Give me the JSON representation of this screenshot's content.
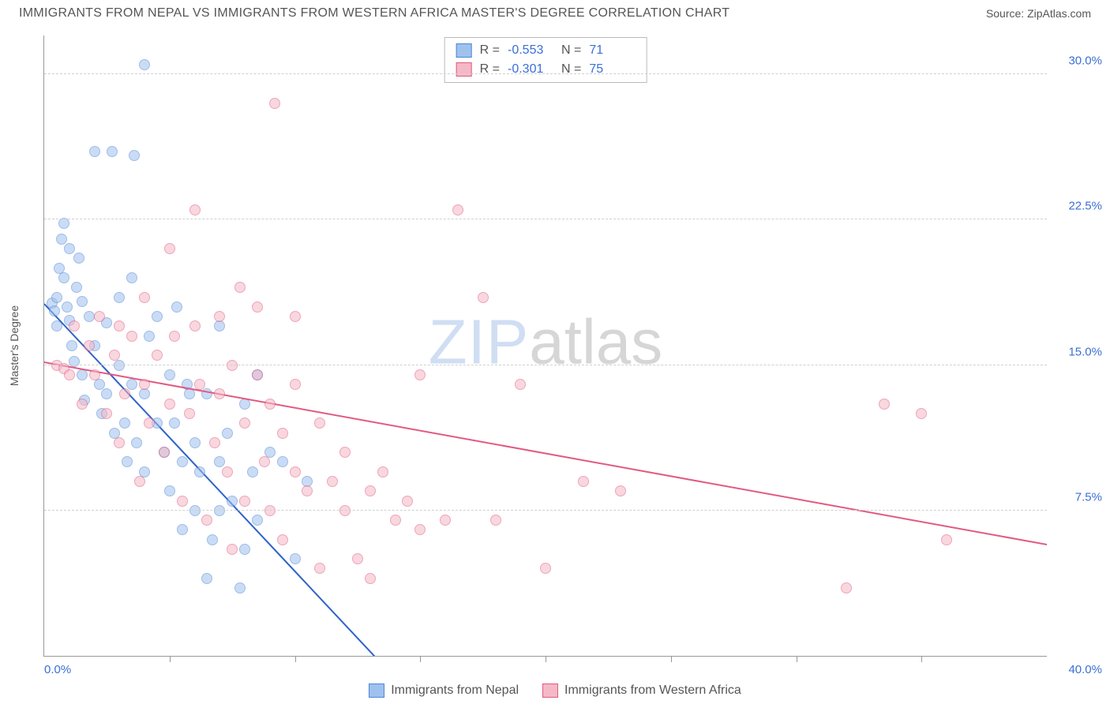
{
  "header": {
    "title": "IMMIGRANTS FROM NEPAL VS IMMIGRANTS FROM WESTERN AFRICA MASTER'S DEGREE CORRELATION CHART",
    "source_prefix": "Source: ",
    "source_link": "ZipAtlas.com"
  },
  "chart": {
    "y_label": "Master's Degree",
    "xlim": [
      0,
      40
    ],
    "ylim": [
      0,
      32
    ],
    "x_min_label": "0.0%",
    "x_max_label": "40.0%",
    "y_ticks": [
      {
        "v": 7.5,
        "label": "7.5%"
      },
      {
        "v": 15.0,
        "label": "15.0%"
      },
      {
        "v": 22.5,
        "label": "22.5%"
      },
      {
        "v": 30.0,
        "label": "30.0%"
      }
    ],
    "x_tick_step": 5,
    "grid_color": "#d0d0d0",
    "background_color": "#ffffff",
    "marker_radius": 7,
    "marker_opacity": 0.55,
    "watermark": {
      "part1": "ZIP",
      "part2": "atlas"
    }
  },
  "series": [
    {
      "name": "Immigrants from Nepal",
      "fill": "#9fc1ee",
      "stroke": "#4e86d6",
      "line_color": "#2e63c9",
      "R": "-0.553",
      "N": "71",
      "trend": {
        "x1": 0,
        "y1": 18.2,
        "x2": 13.2,
        "y2": 0
      },
      "points": [
        [
          0.3,
          18.2
        ],
        [
          0.4,
          17.8
        ],
        [
          0.5,
          17.0
        ],
        [
          0.5,
          18.5
        ],
        [
          0.6,
          20.0
        ],
        [
          0.7,
          21.5
        ],
        [
          0.8,
          22.3
        ],
        [
          0.8,
          19.5
        ],
        [
          0.9,
          18.0
        ],
        [
          1.0,
          21.0
        ],
        [
          1.0,
          17.3
        ],
        [
          1.1,
          16.0
        ],
        [
          1.2,
          15.2
        ],
        [
          1.3,
          19.0
        ],
        [
          1.4,
          20.5
        ],
        [
          1.5,
          18.3
        ],
        [
          1.5,
          14.5
        ],
        [
          1.6,
          13.2
        ],
        [
          1.8,
          17.5
        ],
        [
          2.0,
          16.0
        ],
        [
          2.0,
          26.0
        ],
        [
          2.2,
          14.0
        ],
        [
          2.3,
          12.5
        ],
        [
          2.5,
          17.2
        ],
        [
          2.5,
          13.5
        ],
        [
          2.7,
          26.0
        ],
        [
          2.8,
          11.5
        ],
        [
          3.0,
          15.0
        ],
        [
          3.0,
          18.5
        ],
        [
          3.2,
          12.0
        ],
        [
          3.3,
          10.0
        ],
        [
          3.5,
          14.0
        ],
        [
          3.5,
          19.5
        ],
        [
          3.6,
          25.8
        ],
        [
          3.7,
          11.0
        ],
        [
          4.0,
          30.5
        ],
        [
          4.0,
          13.5
        ],
        [
          4.0,
          9.5
        ],
        [
          4.2,
          16.5
        ],
        [
          4.5,
          12.0
        ],
        [
          4.5,
          17.5
        ],
        [
          4.8,
          10.5
        ],
        [
          5.0,
          14.5
        ],
        [
          5.0,
          8.5
        ],
        [
          5.2,
          12.0
        ],
        [
          5.3,
          18.0
        ],
        [
          5.5,
          6.5
        ],
        [
          5.5,
          10.0
        ],
        [
          5.7,
          14.0
        ],
        [
          5.8,
          13.5
        ],
        [
          6.0,
          11.0
        ],
        [
          6.0,
          7.5
        ],
        [
          6.2,
          9.5
        ],
        [
          6.5,
          13.5
        ],
        [
          6.5,
          4.0
        ],
        [
          6.7,
          6.0
        ],
        [
          7.0,
          17.0
        ],
        [
          7.0,
          10.0
        ],
        [
          7.0,
          7.5
        ],
        [
          7.3,
          11.5
        ],
        [
          7.5,
          8.0
        ],
        [
          7.8,
          3.5
        ],
        [
          8.0,
          13.0
        ],
        [
          8.0,
          5.5
        ],
        [
          8.3,
          9.5
        ],
        [
          8.5,
          14.5
        ],
        [
          8.5,
          7.0
        ],
        [
          9.0,
          10.5
        ],
        [
          9.5,
          10.0
        ],
        [
          10.0,
          5.0
        ],
        [
          10.5,
          9.0
        ]
      ]
    },
    {
      "name": "Immigrants from Western Africa",
      "fill": "#f5b8c6",
      "stroke": "#e15a81",
      "line_color": "#e15a81",
      "R": "-0.301",
      "N": "75",
      "trend": {
        "x1": 0,
        "y1": 15.2,
        "x2": 40,
        "y2": 5.8
      },
      "points": [
        [
          0.5,
          15.0
        ],
        [
          0.8,
          14.8
        ],
        [
          1.0,
          14.5
        ],
        [
          1.2,
          17.0
        ],
        [
          1.5,
          13.0
        ],
        [
          1.8,
          16.0
        ],
        [
          2.0,
          14.5
        ],
        [
          2.2,
          17.5
        ],
        [
          2.5,
          12.5
        ],
        [
          2.8,
          15.5
        ],
        [
          3.0,
          11.0
        ],
        [
          3.0,
          17.0
        ],
        [
          3.2,
          13.5
        ],
        [
          3.5,
          16.5
        ],
        [
          3.8,
          9.0
        ],
        [
          4.0,
          14.0
        ],
        [
          4.0,
          18.5
        ],
        [
          4.2,
          12.0
        ],
        [
          4.5,
          15.5
        ],
        [
          4.8,
          10.5
        ],
        [
          5.0,
          13.0
        ],
        [
          5.0,
          21.0
        ],
        [
          5.2,
          16.5
        ],
        [
          5.5,
          8.0
        ],
        [
          5.8,
          12.5
        ],
        [
          6.0,
          17.0
        ],
        [
          6.0,
          23.0
        ],
        [
          6.2,
          14.0
        ],
        [
          6.5,
          7.0
        ],
        [
          6.8,
          11.0
        ],
        [
          7.0,
          13.5
        ],
        [
          7.0,
          17.5
        ],
        [
          7.3,
          9.5
        ],
        [
          7.5,
          15.0
        ],
        [
          7.5,
          5.5
        ],
        [
          7.8,
          19.0
        ],
        [
          8.0,
          12.0
        ],
        [
          8.0,
          8.0
        ],
        [
          8.5,
          14.5
        ],
        [
          8.5,
          18.0
        ],
        [
          8.8,
          10.0
        ],
        [
          9.0,
          13.0
        ],
        [
          9.0,
          7.5
        ],
        [
          9.2,
          28.5
        ],
        [
          9.5,
          6.0
        ],
        [
          9.5,
          11.5
        ],
        [
          10.0,
          9.5
        ],
        [
          10.0,
          14.0
        ],
        [
          10.0,
          17.5
        ],
        [
          10.5,
          8.5
        ],
        [
          11.0,
          12.0
        ],
        [
          11.0,
          4.5
        ],
        [
          11.5,
          9.0
        ],
        [
          12.0,
          7.5
        ],
        [
          12.0,
          10.5
        ],
        [
          12.5,
          5.0
        ],
        [
          13.0,
          8.5
        ],
        [
          13.0,
          4.0
        ],
        [
          13.5,
          9.5
        ],
        [
          14.0,
          7.0
        ],
        [
          14.5,
          8.0
        ],
        [
          15.0,
          6.5
        ],
        [
          15.0,
          14.5
        ],
        [
          16.0,
          7.0
        ],
        [
          16.5,
          23.0
        ],
        [
          17.5,
          18.5
        ],
        [
          18.0,
          7.0
        ],
        [
          19.0,
          14.0
        ],
        [
          20.0,
          4.5
        ],
        [
          21.5,
          9.0
        ],
        [
          23.0,
          8.5
        ],
        [
          32.0,
          3.5
        ],
        [
          33.5,
          13.0
        ],
        [
          35.0,
          12.5
        ],
        [
          36.0,
          6.0
        ]
      ]
    }
  ],
  "legend": {
    "items": [
      {
        "label": "Immigrants from Nepal"
      },
      {
        "label": "Immigrants from Western Africa"
      }
    ]
  },
  "stats_labels": {
    "R": "R =",
    "N": "N ="
  }
}
